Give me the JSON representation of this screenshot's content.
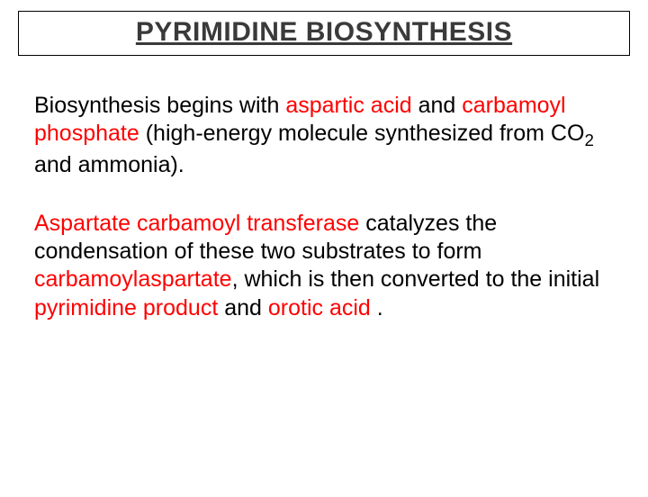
{
  "title": "PYRIMIDINE BIOSYNTHESIS",
  "colors": {
    "title_text": "#3a3a3a",
    "body_text": "#000000",
    "highlight": "#ff0000",
    "title_border": "#000000",
    "background": "#ffffff"
  },
  "typography": {
    "title_fontsize": 30,
    "title_weight": "bold",
    "title_underline": true,
    "body_fontsize": 25,
    "font_family": "Arial"
  },
  "para1": {
    "t1": "Biosynthesis begins with ",
    "h1": "aspartic acid",
    "t2": " and ",
    "h2": "carbamoyl phosphate",
    "t3": " (high-energy molecule synthesized from CO",
    "sub": "2",
    "t4": " and ammonia)."
  },
  "para2": {
    "h1": "Aspartate carbamoyl transferase",
    "t1": " catalyzes the condensation of these two substrates to form ",
    "h2": "carbamoylaspartate",
    "t2": ", which is then converted to the initial ",
    "h3": "pyrimidine product",
    "t3": "  and ",
    "h4": "orotic acid",
    "t4": " ."
  }
}
